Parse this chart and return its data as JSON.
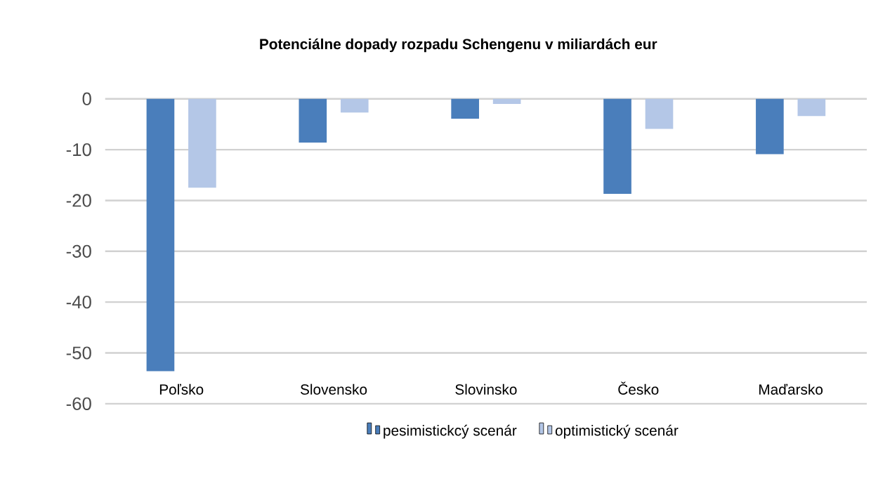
{
  "chart_data": {
    "type": "bar",
    "title": "Potenciálne dopady rozpadu Schengenu v miliardách eur",
    "categories": [
      "Poľsko",
      "Slovensko",
      "Slovinsko",
      "Česko",
      "Maďarsko"
    ],
    "series": [
      {
        "name": "pesimistickcý scenár",
        "color": "#4a7ebb",
        "values": [
          -53.6,
          -8.6,
          -3.9,
          -18.7,
          -10.9
        ]
      },
      {
        "name": "optimistický scenár",
        "color": "#b4c7e7",
        "values": [
          -17.5,
          -2.7,
          -1.0,
          -5.9,
          -3.4
        ]
      }
    ],
    "ylim": [
      -60,
      0
    ],
    "yticks": [
      -60,
      -50,
      -40,
      -30,
      -20,
      -10,
      0
    ],
    "grid": "y",
    "legend": "bottom"
  }
}
